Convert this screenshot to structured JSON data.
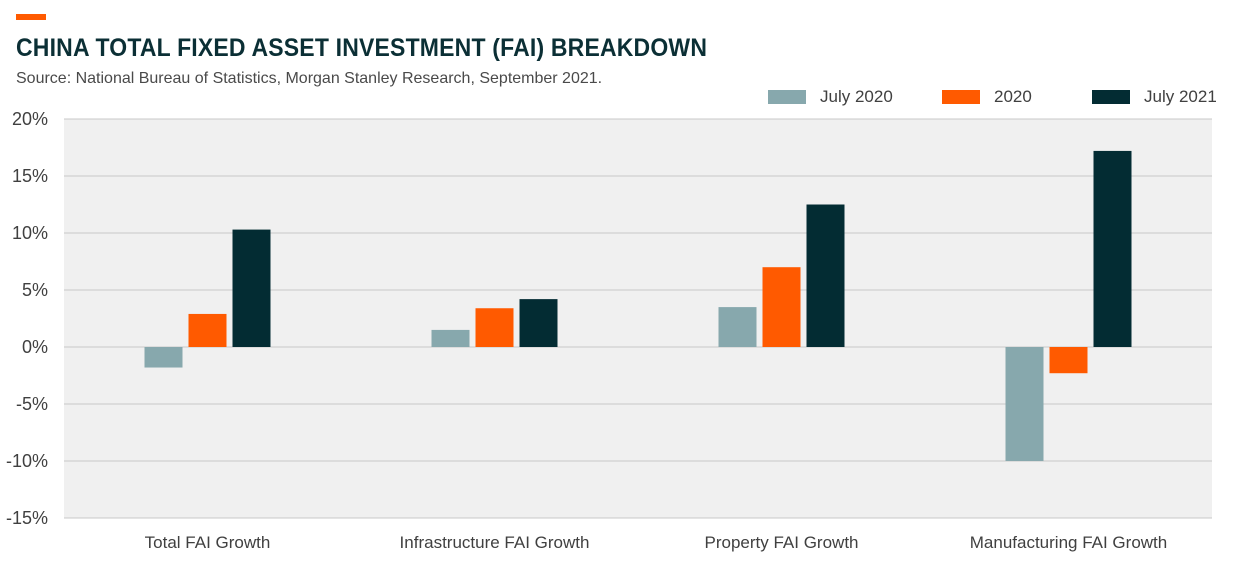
{
  "header": {
    "title": "CHINA TOTAL FIXED ASSET INVESTMENT (FAI) BREAKDOWN",
    "subtitle": "Source: National Bureau of Statistics, Morgan Stanley Research, September 2021."
  },
  "colors": {
    "accent": "#ff5a00",
    "plot_background": "#f0f0f0",
    "gridline": "#c8c8c8"
  },
  "chart_data": {
    "type": "bar",
    "categories": [
      "Total FAI Growth",
      "Infrastructure FAI Growth",
      "Property FAI Growth",
      "Manufacturing FAI Growth"
    ],
    "series": [
      {
        "name": "July 2020",
        "color": "#87a8ad",
        "values": [
          -1.8,
          1.5,
          3.5,
          -10.0
        ]
      },
      {
        "name": "2020",
        "color": "#ff5a00",
        "values": [
          2.9,
          3.4,
          7.0,
          -2.3
        ]
      },
      {
        "name": "July 2021",
        "color": "#032c33",
        "values": [
          10.3,
          4.2,
          12.5,
          17.2
        ]
      }
    ],
    "ylim": [
      -15,
      20
    ],
    "yticks": [
      20,
      15,
      10,
      5,
      0,
      -5,
      -10,
      -15
    ],
    "ytick_labels": [
      "20%",
      "15%",
      "10%",
      "5%",
      "0%",
      "-5%",
      "-10%",
      "-15%"
    ],
    "grid": true,
    "legend": "top-right"
  }
}
